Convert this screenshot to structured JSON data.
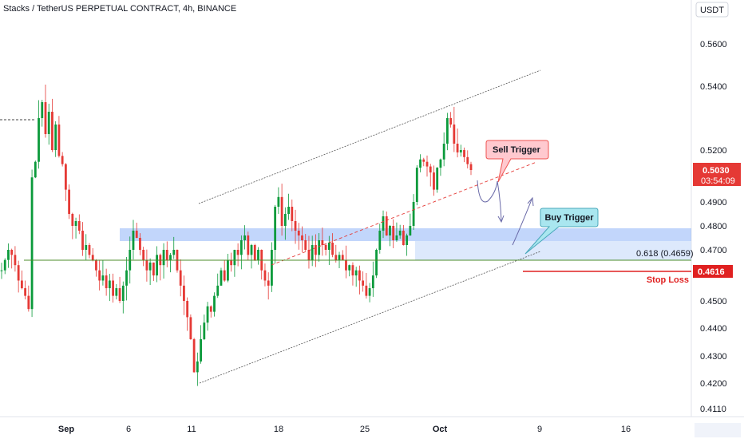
{
  "header": {
    "title": "Stacks / TetherUS PERPETUAL CONTRACT, 4h, BINANCE"
  },
  "currency_label": "USDT",
  "colors": {
    "up": "#26a69a",
    "down": "#ef5350",
    "candle_up": "#0b9a3b",
    "candle_down": "#e53935",
    "zone": "#90b4f8",
    "green_line": "#4c8c2b",
    "stop_line": "#e02020",
    "channel_line": "#555555",
    "sell_fill": "#ffc9cf",
    "buy_fill": "#a9e6ef"
  },
  "annotations": {
    "sell_trigger": "Sell Trigger",
    "buy_trigger": "Buy Trigger",
    "fib_label": "0.618 (0.4659)",
    "stop_loss": "Stop Loss"
  },
  "price_badges": {
    "current_price": "0.5030",
    "countdown": "03:54:09",
    "stop_price": "0.4616"
  },
  "chart_data": {
    "type": "candlestick",
    "title": "Stacks / TetherUS PERPETUAL CONTRACT, 4h, BINANCE",
    "y_axis": {
      "ticks": [
        "0.5600",
        "0.5400",
        "0.5200",
        "0.4900",
        "0.4800",
        "0.4700",
        "0.4500",
        "0.4400",
        "0.4300",
        "0.4200",
        "0.4110"
      ],
      "tick_values": [
        0.56,
        0.54,
        0.52,
        0.49,
        0.48,
        0.47,
        0.45,
        0.44,
        0.43,
        0.42,
        0.411
      ],
      "range": [
        0.4095,
        0.569
      ]
    },
    "x_axis": {
      "ticks": [
        "Sep",
        "6",
        "11",
        "18",
        "25",
        "Oct",
        "9",
        "16"
      ],
      "bold_ticks": [
        "Sep",
        "Oct"
      ]
    },
    "price_path": [
      [
        0.462,
        0.466,
        0.47,
        0.468,
        0.464,
        0.458,
        0.455,
        0.452,
        0.447,
        0.5
      ],
      [
        0.51,
        0.53,
        0.535,
        0.525,
        0.532,
        0.52,
        0.528,
        0.515,
        0.508,
        0.495
      ],
      [
        0.485,
        0.48,
        0.482,
        0.478,
        0.47,
        0.472,
        0.468,
        0.466,
        0.462,
        0.458
      ],
      [
        0.46,
        0.455,
        0.458,
        0.452,
        0.455,
        0.45,
        0.456,
        0.462,
        0.47,
        0.478
      ],
      [
        0.475,
        0.47,
        0.466,
        0.462,
        0.465,
        0.46,
        0.468,
        0.464,
        0.47,
        0.466
      ],
      [
        0.468,
        0.47,
        0.462,
        0.456,
        0.45,
        0.444,
        0.436,
        0.424,
        0.428,
        0.436
      ],
      [
        0.442,
        0.448,
        0.446,
        0.452,
        0.456,
        0.462,
        0.458,
        0.466,
        0.464,
        0.47
      ],
      [
        0.468,
        0.474,
        0.476,
        0.468,
        0.472,
        0.466,
        0.47,
        0.462,
        0.458,
        0.456
      ],
      [
        0.47,
        0.488,
        0.492,
        0.48,
        0.485,
        0.488,
        0.482,
        0.478,
        0.476,
        0.474
      ],
      [
        0.47,
        0.466,
        0.472,
        0.468,
        0.474,
        0.472,
        0.47,
        0.473,
        0.468,
        0.466
      ],
      [
        0.468,
        0.466,
        0.462,
        0.464,
        0.46,
        0.462,
        0.458,
        0.456,
        0.452,
        0.455
      ],
      [
        0.46,
        0.47,
        0.478,
        0.484,
        0.476,
        0.48,
        0.474,
        0.476,
        0.478,
        0.472
      ],
      [
        0.476,
        0.48,
        0.49,
        0.505,
        0.512,
        0.51,
        0.506,
        0.502,
        0.495,
        0.505
      ],
      [
        0.512,
        0.522,
        0.53,
        0.528,
        0.522,
        0.518,
        0.52,
        0.514,
        0.508,
        0.503
      ]
    ],
    "zones": {
      "blue_zone": [
        0.474,
        0.4795
      ],
      "fib_0618": 0.4659,
      "stop_loss": 0.4616,
      "current": 0.503,
      "dashed_left": 0.525
    }
  }
}
